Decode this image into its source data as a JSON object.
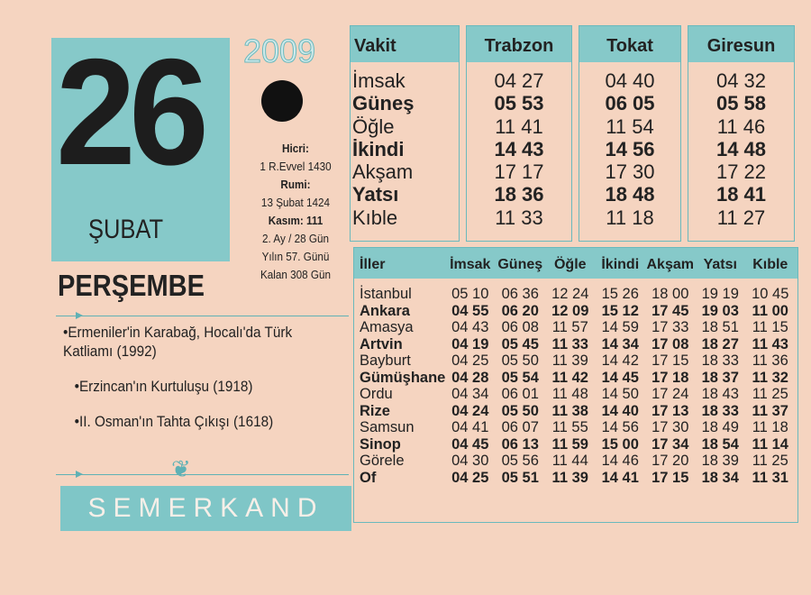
{
  "day": "26",
  "month": "ŞUBAT",
  "year": "2009",
  "weekday": "PERŞEMBE",
  "moon_phase_icon": "new-moon-icon",
  "info": [
    {
      "text": "Hicri:",
      "bold": true
    },
    {
      "text": "1 R.Evvel 1430",
      "bold": false
    },
    {
      "text": "Rumi:",
      "bold": true
    },
    {
      "text": "13 Şubat 1424",
      "bold": false
    },
    {
      "text": "Kasım: 111",
      "bold": true
    },
    {
      "text": "2. Ay / 28 Gün",
      "bold": false
    },
    {
      "text": "Yılın 57. Günü",
      "bold": false
    },
    {
      "text": "Kalan 308 Gün",
      "bold": false
    }
  ],
  "events": [
    "•Ermeniler'in Karabağ, Hocalı'da Türk Katliamı (1992)",
    "•Erzincan'ın Kurtuluşu (1918)",
    "•II. Osman'ın Tahta Çıkışı (1618)"
  ],
  "brand": "SEMERKAND",
  "top_table": {
    "header": "Vakit",
    "cities": [
      "Trabzon",
      "Tokat",
      "Giresun"
    ],
    "rows": [
      {
        "label": "İmsak",
        "bold": false,
        "values": [
          "04 27",
          "04 40",
          "04 32"
        ]
      },
      {
        "label": "Güneş",
        "bold": true,
        "values": [
          "05 53",
          "06 05",
          "05 58"
        ]
      },
      {
        "label": "Öğle",
        "bold": false,
        "values": [
          "11 41",
          "11 54",
          "11 46"
        ]
      },
      {
        "label": "İkindi",
        "bold": true,
        "values": [
          "14 43",
          "14 56",
          "14 48"
        ]
      },
      {
        "label": "Akşam",
        "bold": false,
        "values": [
          "17 17",
          "17 30",
          "17 22"
        ]
      },
      {
        "label": "Yatsı",
        "bold": true,
        "values": [
          "18 36",
          "18 48",
          "18 41"
        ]
      },
      {
        "label": "Kıble",
        "bold": false,
        "values": [
          "11 33",
          "11 18",
          "11 27"
        ]
      }
    ]
  },
  "bottom_table": {
    "headers": [
      "İller",
      "İmsak",
      "Güneş",
      "Öğle",
      "İkindi",
      "Akşam",
      "Yatsı",
      "Kıble"
    ],
    "rows": [
      {
        "city": "İstanbul",
        "bold": false,
        "values": [
          "05 10",
          "06 36",
          "12 24",
          "15 26",
          "18 00",
          "19 19",
          "10 45"
        ]
      },
      {
        "city": "Ankara",
        "bold": true,
        "values": [
          "04 55",
          "06 20",
          "12 09",
          "15 12",
          "17 45",
          "19 03",
          "11 00"
        ]
      },
      {
        "city": "Amasya",
        "bold": false,
        "values": [
          "04 43",
          "06 08",
          "11 57",
          "14 59",
          "17 33",
          "18 51",
          "11 15"
        ]
      },
      {
        "city": "Artvin",
        "bold": true,
        "values": [
          "04 19",
          "05 45",
          "11 33",
          "14 34",
          "17 08",
          "18 27",
          "11 43"
        ]
      },
      {
        "city": "Bayburt",
        "bold": false,
        "values": [
          "04 25",
          "05 50",
          "11 39",
          "14 42",
          "17 15",
          "18 33",
          "11 36"
        ]
      },
      {
        "city": "Gümüşhane",
        "bold": true,
        "values": [
          "04 28",
          "05 54",
          "11 42",
          "14 45",
          "17 18",
          "18 37",
          "11 32"
        ]
      },
      {
        "city": "Ordu",
        "bold": false,
        "values": [
          "04 34",
          "06 01",
          "11 48",
          "14 50",
          "17 24",
          "18 43",
          "11 25"
        ]
      },
      {
        "city": "Rize",
        "bold": true,
        "values": [
          "04 24",
          "05 50",
          "11 38",
          "14 40",
          "17 13",
          "18 33",
          "11 37"
        ]
      },
      {
        "city": "Samsun",
        "bold": false,
        "values": [
          "04 41",
          "06 07",
          "11 55",
          "14 56",
          "17 30",
          "18 49",
          "11 18"
        ]
      },
      {
        "city": "Sinop",
        "bold": true,
        "values": [
          "04 45",
          "06 13",
          "11 59",
          "15 00",
          "17 34",
          "18 54",
          "11 14"
        ]
      },
      {
        "city": "Görele",
        "bold": false,
        "values": [
          "04 30",
          "05 56",
          "11 44",
          "14 46",
          "17 20",
          "18 39",
          "11 25"
        ]
      },
      {
        "city": "Of",
        "bold": true,
        "values": [
          "04 25",
          "05 51",
          "11 39",
          "14 41",
          "17 15",
          "18 34",
          "11 31"
        ]
      }
    ]
  },
  "colors": {
    "paper": "#f5d4c0",
    "teal": "#86c9c9",
    "ink": "#222222"
  }
}
